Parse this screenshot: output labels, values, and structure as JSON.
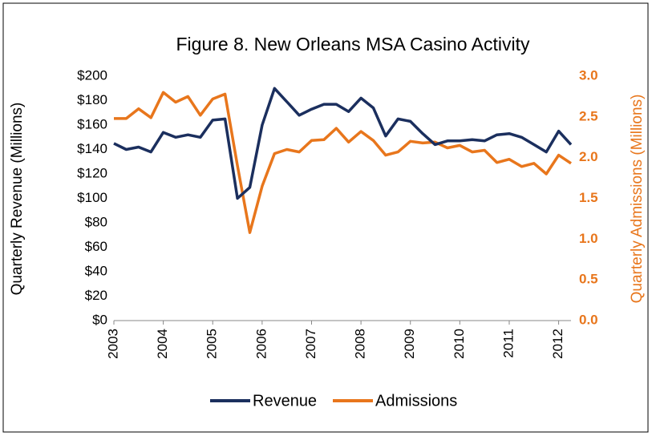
{
  "chart_data": {
    "type": "line",
    "title": "Figure 8. New Orleans MSA Casino Activity",
    "y_label": "Quarterly Revenue (Millions)",
    "y2_label": "Quarterly Admissions (Millions)",
    "x": [
      2003,
      2003.25,
      2003.5,
      2003.75,
      2004,
      2004.25,
      2004.5,
      2004.75,
      2005,
      2005.25,
      2005.5,
      2005.75,
      2006,
      2006.25,
      2006.5,
      2006.75,
      2007,
      2007.25,
      2007.5,
      2007.75,
      2008,
      2008.25,
      2008.5,
      2008.75,
      2009,
      2009.25,
      2009.5,
      2009.75,
      2010,
      2010.25,
      2010.5,
      2010.75,
      2011,
      2011.25,
      2011.5,
      2011.75,
      2012,
      2012.25
    ],
    "xlim": [
      2003,
      2012.25
    ],
    "xticks": [
      2003,
      2004,
      2005,
      2006,
      2007,
      2008,
      2009,
      2010,
      2011,
      2012
    ],
    "ylim": [
      0,
      200
    ],
    "yticks": [
      {
        "value": 0,
        "label": "$0"
      },
      {
        "value": 20,
        "label": "$20"
      },
      {
        "value": 40,
        "label": "$40"
      },
      {
        "value": 60,
        "label": "$60"
      },
      {
        "value": 80,
        "label": "$80"
      },
      {
        "value": 100,
        "label": "$100"
      },
      {
        "value": 120,
        "label": "$120"
      },
      {
        "value": 140,
        "label": "$140"
      },
      {
        "value": 160,
        "label": "$160"
      },
      {
        "value": 180,
        "label": "$180"
      },
      {
        "value": 200,
        "label": "$200"
      }
    ],
    "y2lim": [
      0,
      3
    ],
    "y2ticks": [
      {
        "value": 0,
        "label": "0.0"
      },
      0.5,
      {
        "value": 1,
        "label": "1.0"
      },
      1.5,
      {
        "value": 2,
        "label": "2.0"
      },
      2.5,
      {
        "value": 3,
        "label": "3.0"
      }
    ],
    "legend": "bottom",
    "series": [
      {
        "name": "Revenue",
        "color": "#1b2f5e",
        "values": [
          145,
          140,
          142,
          138,
          154,
          150,
          152,
          150,
          164,
          165,
          100,
          109,
          160,
          190,
          179,
          168,
          173,
          177,
          177,
          171,
          182,
          174,
          151,
          165,
          163,
          153,
          144,
          147,
          147,
          148,
          147,
          152,
          153,
          150,
          144,
          138,
          155,
          144
        ]
      },
      {
        "name": "Admissions",
        "color": "#e8761c",
        "axis": "y2",
        "values": [
          2.48,
          2.48,
          2.6,
          2.49,
          2.8,
          2.68,
          2.75,
          2.52,
          2.72,
          2.78,
          1.9,
          1.08,
          1.65,
          2.05,
          2.1,
          2.07,
          2.21,
          2.22,
          2.36,
          2.19,
          2.32,
          2.21,
          2.03,
          2.07,
          2.2,
          2.18,
          2.19,
          2.12,
          2.15,
          2.07,
          2.09,
          1.94,
          1.98,
          1.89,
          1.93,
          1.8,
          2.03,
          1.93
        ]
      }
    ]
  }
}
